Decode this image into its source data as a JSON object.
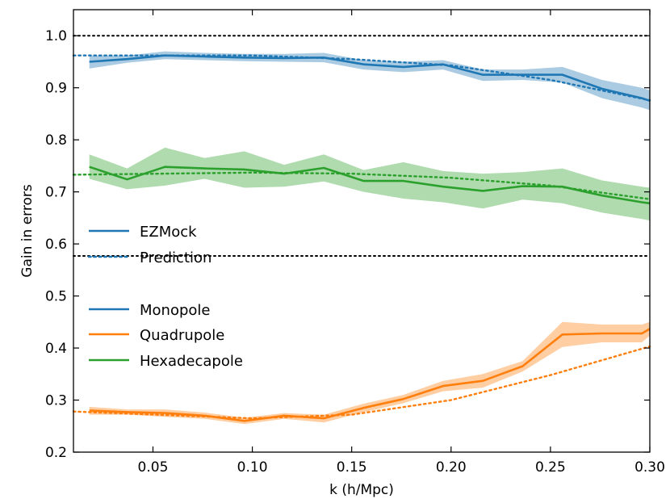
{
  "chart_data": {
    "type": "line",
    "title": "",
    "xlabel": "k (h/Mpc)",
    "ylabel": "Gain in errors",
    "xlim": [
      0.01,
      0.3
    ],
    "ylim": [
      0.2,
      1.05
    ],
    "xticks": [
      0.05,
      0.1,
      0.15,
      0.2,
      0.25,
      0.3
    ],
    "xtick_labels": [
      "0.05",
      "0.10",
      "0.15",
      "0.20",
      "0.25",
      "0.30"
    ],
    "yticks": [
      0.2,
      0.3,
      0.4,
      0.5,
      0.6,
      0.7,
      0.8,
      0.9,
      1.0
    ],
    "ytick_labels": [
      "0.2",
      "0.3",
      "0.4",
      "0.5",
      "0.6",
      "0.7",
      "0.8",
      "0.9",
      "1.0"
    ],
    "reference_lines": [
      1.0,
      0.577
    ],
    "x": [
      0.018,
      0.037,
      0.056,
      0.076,
      0.096,
      0.116,
      0.136,
      0.156,
      0.176,
      0.196,
      0.216,
      0.236,
      0.256,
      0.276,
      0.296,
      0.3
    ],
    "series": [
      {
        "name": "Monopole",
        "color": "#1f77b4",
        "values": [
          0.95,
          0.955,
          0.962,
          0.96,
          0.958,
          0.957,
          0.958,
          0.945,
          0.94,
          0.945,
          0.925,
          0.925,
          0.925,
          0.898,
          0.88,
          0.875
        ],
        "upper": [
          0.962,
          0.962,
          0.97,
          0.967,
          0.965,
          0.965,
          0.967,
          0.953,
          0.95,
          0.953,
          0.935,
          0.935,
          0.94,
          0.915,
          0.9,
          0.895
        ],
        "lower": [
          0.937,
          0.948,
          0.955,
          0.953,
          0.951,
          0.95,
          0.949,
          0.935,
          0.93,
          0.935,
          0.913,
          0.915,
          0.91,
          0.88,
          0.862,
          0.857
        ],
        "prediction": {
          "x": [
            0.01,
            0.1,
            0.15,
            0.2,
            0.25,
            0.3
          ],
          "values": [
            0.962,
            0.962,
            0.955,
            0.943,
            0.915,
            0.876
          ]
        }
      },
      {
        "name": "Quadrupole",
        "color": "#ff7f0e",
        "values": [
          0.28,
          0.277,
          0.275,
          0.27,
          0.26,
          0.27,
          0.265,
          0.285,
          0.302,
          0.327,
          0.337,
          0.365,
          0.426,
          0.428,
          0.428,
          0.437
        ],
        "upper": [
          0.287,
          0.282,
          0.282,
          0.276,
          0.266,
          0.275,
          0.272,
          0.293,
          0.31,
          0.337,
          0.35,
          0.375,
          0.45,
          0.445,
          0.445,
          0.45
        ],
        "lower": [
          0.272,
          0.272,
          0.268,
          0.264,
          0.254,
          0.264,
          0.257,
          0.277,
          0.294,
          0.317,
          0.324,
          0.355,
          0.402,
          0.411,
          0.411,
          0.424
        ],
        "prediction": {
          "x": [
            0.01,
            0.1,
            0.15,
            0.2,
            0.25,
            0.3
          ],
          "values": [
            0.278,
            0.265,
            0.272,
            0.3,
            0.348,
            0.403
          ]
        }
      },
      {
        "name": "Hexadecapole",
        "color": "#2ca02c",
        "values": [
          0.748,
          0.724,
          0.748,
          0.745,
          0.743,
          0.735,
          0.746,
          0.721,
          0.721,
          0.71,
          0.702,
          0.711,
          0.71,
          0.693,
          0.68,
          0.678
        ],
        "upper": [
          0.772,
          0.745,
          0.785,
          0.765,
          0.778,
          0.752,
          0.772,
          0.742,
          0.757,
          0.74,
          0.735,
          0.738,
          0.745,
          0.722,
          0.71,
          0.708
        ],
        "lower": [
          0.725,
          0.705,
          0.712,
          0.725,
          0.708,
          0.71,
          0.72,
          0.7,
          0.687,
          0.68,
          0.668,
          0.685,
          0.678,
          0.66,
          0.648,
          0.645
        ],
        "prediction": {
          "x": [
            0.01,
            0.1,
            0.15,
            0.2,
            0.25,
            0.3
          ],
          "values": [
            0.733,
            0.737,
            0.735,
            0.727,
            0.712,
            0.686
          ]
        }
      }
    ],
    "legend": {
      "style_entries": [
        {
          "label": "EZMock",
          "style": "solid",
          "color": "#1f77b4"
        },
        {
          "label": "Prediction",
          "style": "dotted",
          "color": "#1f77b4"
        }
      ],
      "multipole_entries": [
        {
          "label": "Monopole",
          "color": "#1f77b4"
        },
        {
          "label": "Quadrupole",
          "color": "#ff7f0e"
        },
        {
          "label": "Hexadecapole",
          "color": "#2ca02c"
        }
      ],
      "placement": "left"
    }
  }
}
